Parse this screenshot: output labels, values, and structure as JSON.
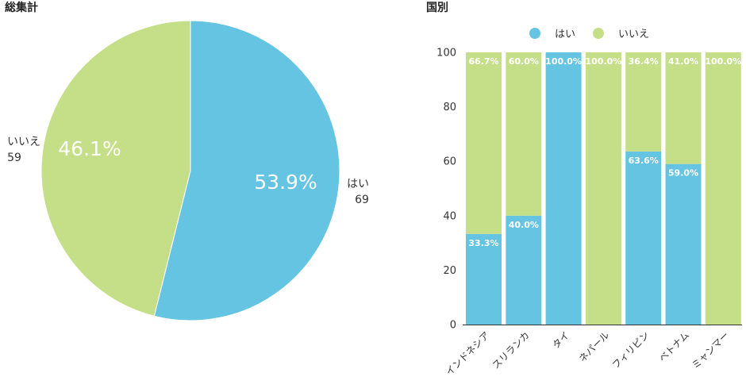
{
  "pie_title": "総集計",
  "bar_title": "国別",
  "colors": {
    "yes": "#66c4e3",
    "no": "#c5df88",
    "axis": "#333333",
    "separator": "#ffffff"
  },
  "chart_data": [
    {
      "type": "pie",
      "title": "総集計",
      "slices": [
        {
          "name": "はい",
          "value": 69,
          "percent_label": "53.9%",
          "count_label": "69"
        },
        {
          "name": "いいえ",
          "value": 59,
          "percent_label": "46.1%",
          "count_label": "59"
        }
      ]
    },
    {
      "type": "bar",
      "stacked": true,
      "title": "国別",
      "categories": [
        "インドネシア",
        "スリランカ",
        "タイ",
        "ネパール",
        "フィリピン",
        "ベトナム",
        "ミャンマー"
      ],
      "series": [
        {
          "name": "はい",
          "values": [
            33.3,
            40.0,
            100.0,
            0,
            63.6,
            59.0,
            0
          ],
          "labels": [
            "33.3%",
            "40.0%",
            "100.0%",
            "",
            "63.6%",
            "59.0%",
            ""
          ]
        },
        {
          "name": "いいえ",
          "values": [
            66.7,
            60.0,
            0,
            100.0,
            36.4,
            41.0,
            100.0
          ],
          "labels": [
            "66.7%",
            "60.0%",
            "",
            "100.0%",
            "36.4%",
            "41.0%",
            "100.0%"
          ]
        }
      ],
      "ylim": [
        0,
        100
      ],
      "yticks": [
        0,
        20,
        40,
        60,
        80,
        100
      ],
      "legend": "top-center",
      "grid": false
    }
  ]
}
